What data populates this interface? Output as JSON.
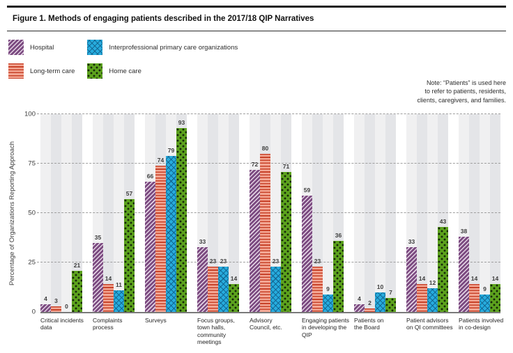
{
  "header": {
    "title": "Figure 1. Methods of engaging patients described in the 2017/18 QIP Narratives"
  },
  "note": {
    "text": "Note: “Patients” is used here\nto refer to patients, residents,\nclients, caregivers, and families."
  },
  "chart_data": {
    "type": "bar",
    "title": "Figure 1. Methods of engaging patients described in the 2017/18 QIP Narratives",
    "xlabel": "",
    "ylabel": "Percentage of Organizations Reporting Approach",
    "ylim": [
      0,
      100
    ],
    "yticks": [
      0,
      25,
      50,
      75,
      100
    ],
    "grid": "horizontal-dashed",
    "legend_position": "top-left",
    "plot_background": "alternating vertical gray bands per bar slot",
    "categories": [
      "Critical incidents\ndata",
      "Complaints\nprocess",
      "Surveys",
      "Focus groups,\ntown halls,\ncommunity\nmeetings",
      "Advisory\nCouncil, etc.",
      "Engaging patients\nin developing the\nQIP",
      "Patients on\nthe Board",
      "Patient advisors\non QI committees",
      "Patients involved\nin co-design"
    ],
    "series": [
      {
        "name": "Hospital",
        "pattern": "purple-diagonal-stripes",
        "color": "#7b4a80",
        "values": [
          4,
          35,
          66,
          33,
          72,
          59,
          4,
          33,
          38
        ]
      },
      {
        "name": "Long-term care",
        "pattern": "orange-horizontal-stripes",
        "color": "#c8432a",
        "values": [
          3,
          14,
          74,
          23,
          80,
          23,
          2,
          14,
          14
        ]
      },
      {
        "name": "Interprofessional primary care organizations",
        "pattern": "cyan-crosshatch",
        "color": "#27acde",
        "values": [
          0,
          11,
          79,
          23,
          23,
          9,
          10,
          12,
          9
        ]
      },
      {
        "name": "Home care",
        "pattern": "green-black-dots",
        "color": "#5ca21d",
        "values": [
          21,
          57,
          93,
          14,
          71,
          36,
          7,
          43,
          14
        ]
      }
    ]
  }
}
